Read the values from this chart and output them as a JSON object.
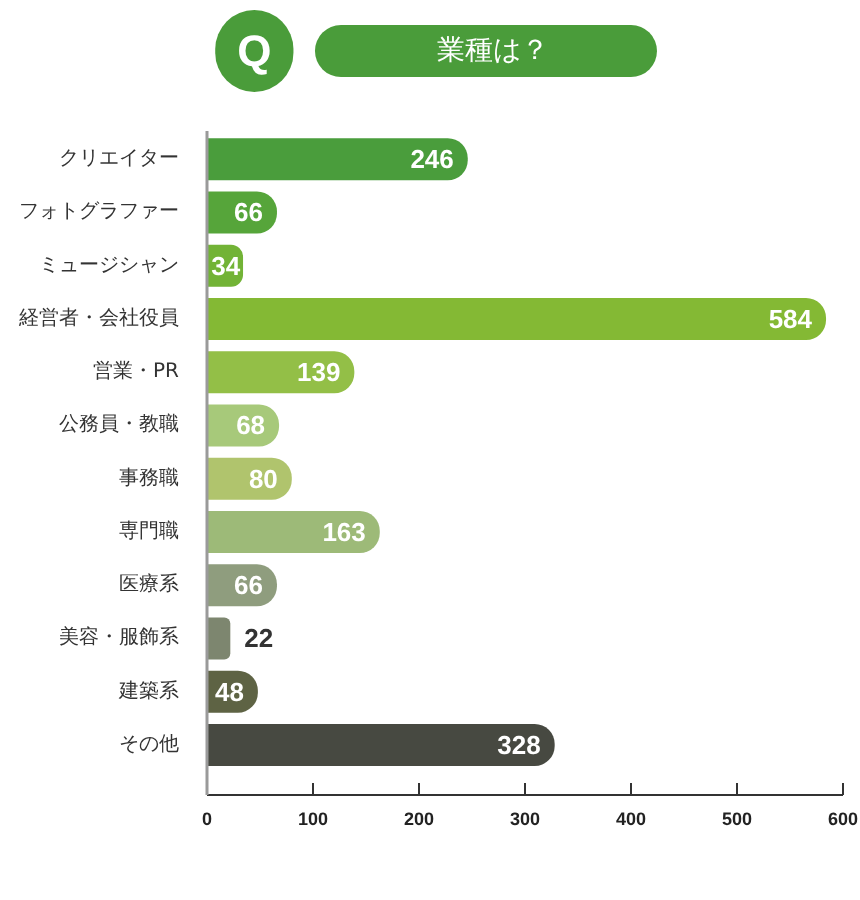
{
  "chart_data": {
    "type": "bar",
    "orientation": "horizontal",
    "title": "業種は？",
    "annotations": [
      "Q"
    ],
    "categories": [
      "クリエイター",
      "フォトグラファー",
      "ミュージシャン",
      "経営者・会社役員",
      "営業・PR",
      "公務員・教職",
      "事務職",
      "専門職",
      "医療系",
      "美容・服飾系",
      "建築系",
      "その他"
    ],
    "values": [
      246,
      66,
      34,
      584,
      139,
      68,
      80,
      163,
      66,
      22,
      48,
      328
    ],
    "colors": [
      "#4a9d3c",
      "#56a53a",
      "#72b336",
      "#84b934",
      "#93bf47",
      "#a7c97a",
      "#b0c46d",
      "#9dba78",
      "#8f9d7e",
      "#7d866f",
      "#5e6344",
      "#474941"
    ],
    "xlim": [
      0,
      600
    ],
    "xticks": [
      0,
      100,
      200,
      300,
      400,
      500,
      600
    ],
    "data_labels": true,
    "grid": false
  }
}
